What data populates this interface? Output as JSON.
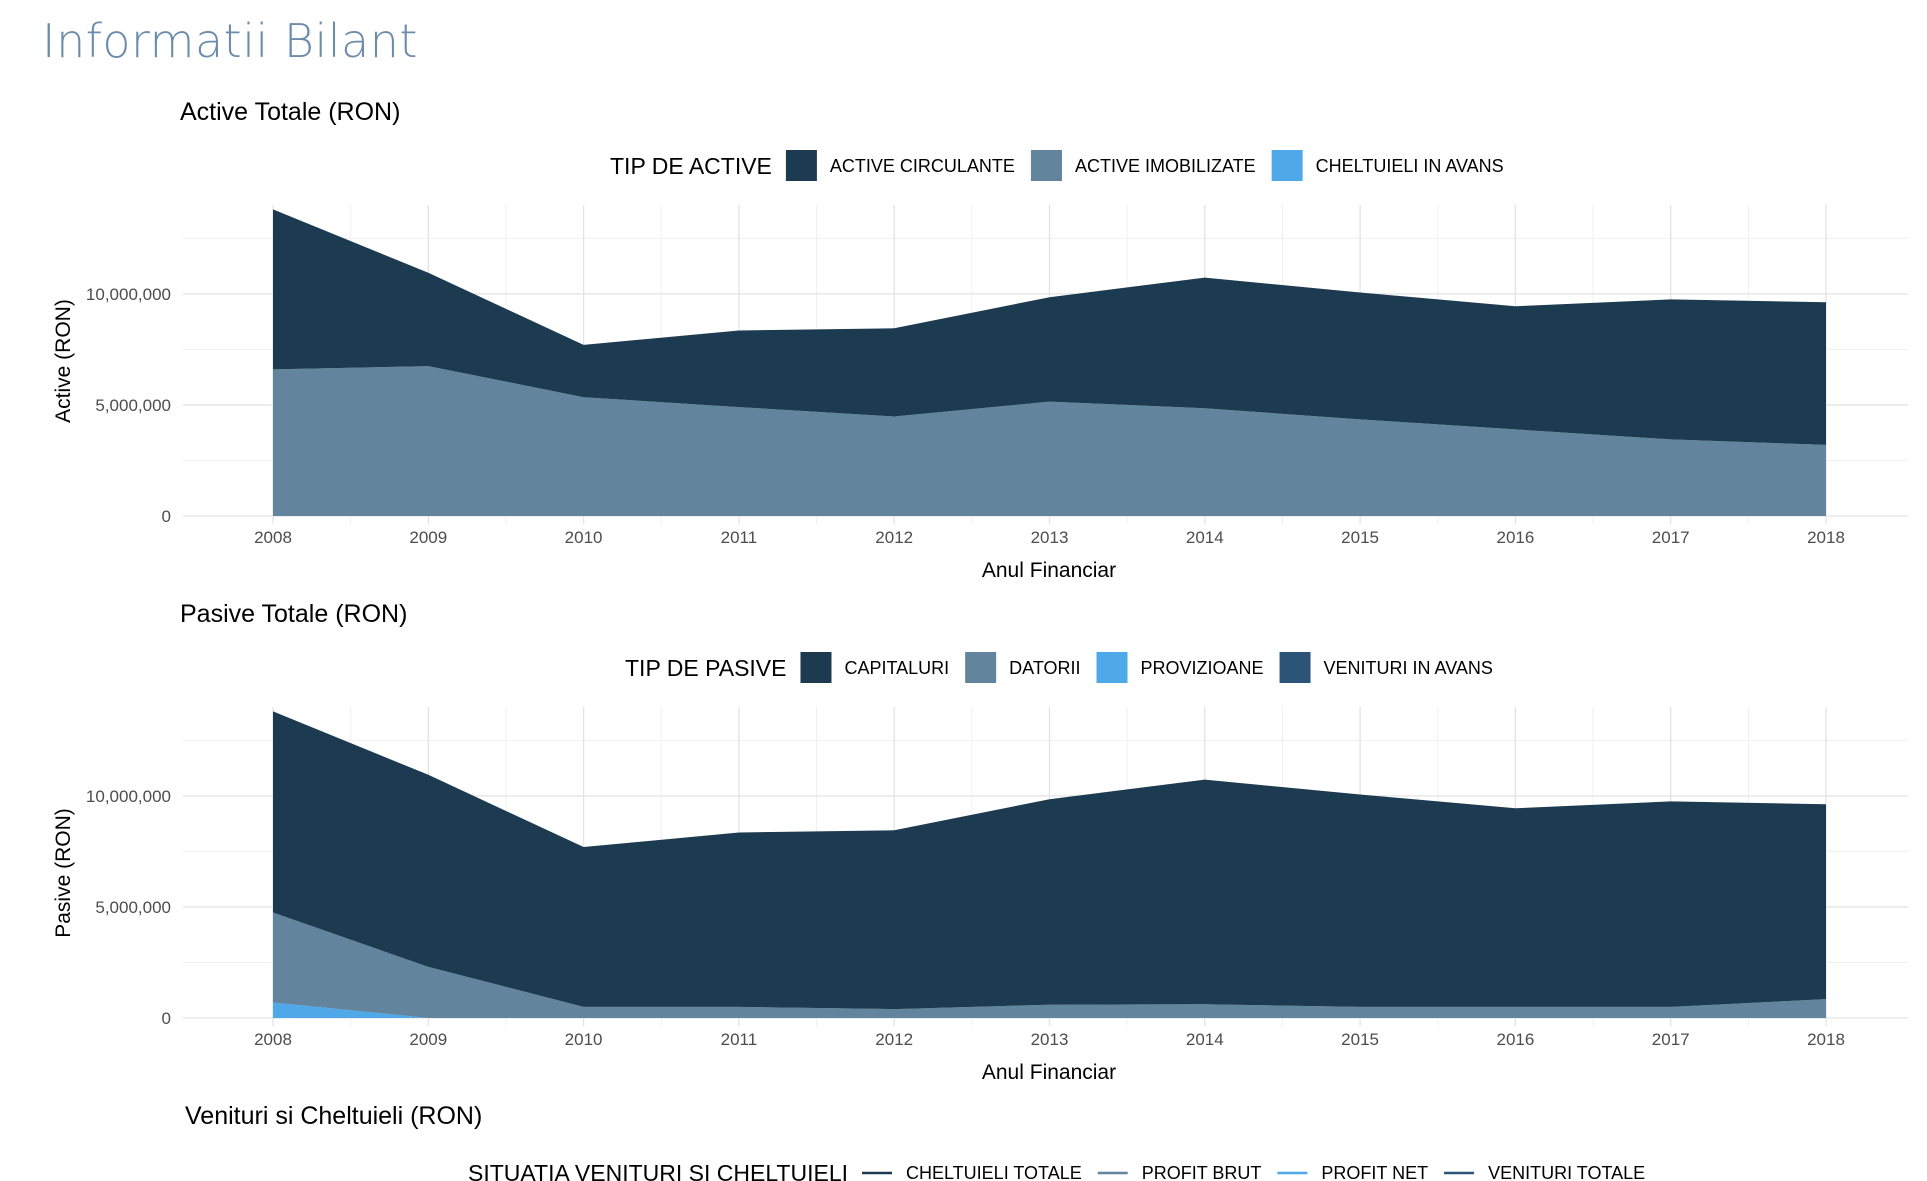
{
  "page": {
    "title": "Informatii Bilant"
  },
  "colors": {
    "dark": "#1c3a50",
    "medium": "#62849c",
    "light": "#4fa8e8",
    "navy": "#2c5479"
  },
  "chart_data": [
    {
      "type": "area",
      "stacked": true,
      "title": "Active Totale (RON)",
      "xlabel": "Anul Financiar",
      "ylabel": "Active (RON)",
      "legend_title": "TIP DE ACTIVE",
      "legend_position": "top",
      "grid": true,
      "ylim": [
        0,
        14000000
      ],
      "yticks": [
        0,
        5000000,
        10000000
      ],
      "ytick_labels": [
        "0",
        "5,000,000",
        "10,000,000"
      ],
      "x": [
        2008,
        2009,
        2010,
        2011,
        2012,
        2013,
        2014,
        2015,
        2016,
        2017,
        2018
      ],
      "series": [
        {
          "name": "CHELTUIELI IN AVANS",
          "color": "#4fa8e8",
          "values": [
            0,
            0,
            0,
            0,
            0,
            0,
            0,
            0,
            0,
            0,
            0
          ]
        },
        {
          "name": "ACTIVE IMOBILIZATE",
          "color": "#62849c",
          "values": [
            6600000,
            6750000,
            5350000,
            4900000,
            4480000,
            5150000,
            4850000,
            4350000,
            3900000,
            3450000,
            3200000
          ]
        },
        {
          "name": "ACTIVE CIRCULANTE",
          "color": "#1c3a50",
          "values": [
            7200000,
            4200000,
            2350000,
            3450000,
            3970000,
            4700000,
            5880000,
            5710000,
            5540000,
            6300000,
            6420000
          ]
        }
      ],
      "legend_order": [
        "ACTIVE CIRCULANTE",
        "ACTIVE IMOBILIZATE",
        "CHELTUIELI IN AVANS"
      ]
    },
    {
      "type": "area",
      "stacked": true,
      "title": "Pasive Totale (RON)",
      "xlabel": "Anul Financiar",
      "ylabel": "Pasive (RON)",
      "legend_title": "TIP DE PASIVE",
      "legend_position": "top",
      "grid": true,
      "ylim": [
        0,
        14000000
      ],
      "yticks": [
        0,
        5000000,
        10000000
      ],
      "ytick_labels": [
        "0",
        "5,000,000",
        "10,000,000"
      ],
      "x": [
        2008,
        2009,
        2010,
        2011,
        2012,
        2013,
        2014,
        2015,
        2016,
        2017,
        2018
      ],
      "series": [
        {
          "name": "PROVIZIOANE",
          "color": "#4fa8e8",
          "values": [
            700000,
            0,
            0,
            0,
            0,
            0,
            0,
            0,
            0,
            0,
            0
          ]
        },
        {
          "name": "VENITURI IN AVANS",
          "color": "#2c5479",
          "values": [
            0,
            0,
            0,
            0,
            0,
            0,
            0,
            0,
            0,
            0,
            0
          ]
        },
        {
          "name": "DATORII",
          "color": "#62849c",
          "values": [
            4050000,
            2300000,
            500000,
            500000,
            400000,
            600000,
            620000,
            500000,
            500000,
            500000,
            850000
          ]
        },
        {
          "name": "CAPITALURI",
          "color": "#1c3a50",
          "values": [
            9050000,
            8650000,
            7200000,
            7850000,
            8050000,
            9250000,
            10110000,
            9560000,
            8940000,
            9250000,
            8770000
          ]
        }
      ],
      "legend_order": [
        "CAPITALURI",
        "DATORII",
        "PROVIZIOANE",
        "VENITURI IN AVANS"
      ]
    },
    {
      "type": "line",
      "title": "Venituri si Cheltuieli (RON)",
      "legend_title": "SITUATIA VENITURI SI CHELTUIELI",
      "legend_position": "top",
      "series": [
        {
          "name": "CHELTUIELI TOTALE",
          "color": "#1c3a50",
          "values": []
        },
        {
          "name": "PROFIT BRUT",
          "color": "#62849c",
          "values": []
        },
        {
          "name": "PROFIT NET",
          "color": "#4fa8e8",
          "values": []
        },
        {
          "name": "VENITURI TOTALE",
          "color": "#2c5479",
          "values": []
        }
      ],
      "legend_order": [
        "CHELTUIELI TOTALE",
        "PROFIT BRUT",
        "PROFIT NET",
        "VENITURI TOTALE"
      ]
    }
  ]
}
